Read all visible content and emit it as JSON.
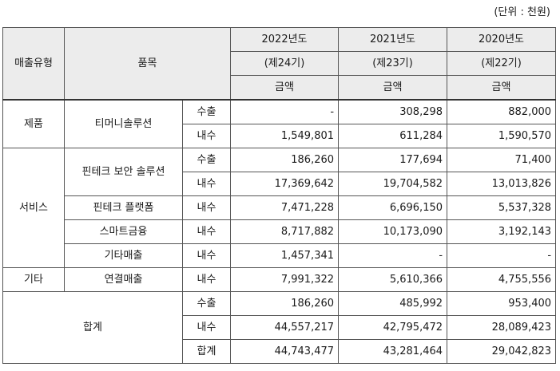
{
  "unit_note": "(단위 : 천원)",
  "header": {
    "col_type": "매출유형",
    "col_item": "품목",
    "years": [
      "2022년도",
      "2021년도",
      "2020년도"
    ],
    "terms": [
      "(제24기)",
      "(제23기)",
      "(제22기)"
    ],
    "amount": "금액"
  },
  "rows": [
    {
      "type": "제품",
      "item": "티머니솔루션",
      "kind": "수출",
      "v": [
        "-",
        "308,298",
        "882,000"
      ]
    },
    {
      "kind": "내수",
      "v": [
        "1,549,801",
        "611,284",
        "1,590,570"
      ]
    },
    {
      "type": "서비스",
      "item": "핀테크 보안 솔루션",
      "kind": "수출",
      "v": [
        "186,260",
        "177,694",
        "71,400"
      ]
    },
    {
      "kind": "내수",
      "v": [
        "17,369,642",
        "19,704,582",
        "13,013,826"
      ]
    },
    {
      "item": "핀테크 플랫폼",
      "kind": "내수",
      "v": [
        "7,471,228",
        "6,696,150",
        "5,537,328"
      ]
    },
    {
      "item": "스마트금융",
      "kind": "내수",
      "v": [
        "8,717,882",
        "10,173,090",
        "3,192,143"
      ]
    },
    {
      "item": "기타매출",
      "kind": "내수",
      "v": [
        "1,457,341",
        "-",
        "-"
      ]
    },
    {
      "type": "기타",
      "item": "연결매출",
      "kind": "내수",
      "v": [
        "7,991,322",
        "5,610,366",
        "4,755,556"
      ]
    },
    {
      "type": "합계",
      "kind": "수출",
      "v": [
        "186,260",
        "485,992",
        "953,400"
      ]
    },
    {
      "kind": "내수",
      "v": [
        "44,557,217",
        "42,795,472",
        "28,089,423"
      ]
    },
    {
      "kind": "합계",
      "v": [
        "44,743,477",
        "43,281,464",
        "29,042,823"
      ]
    }
  ]
}
